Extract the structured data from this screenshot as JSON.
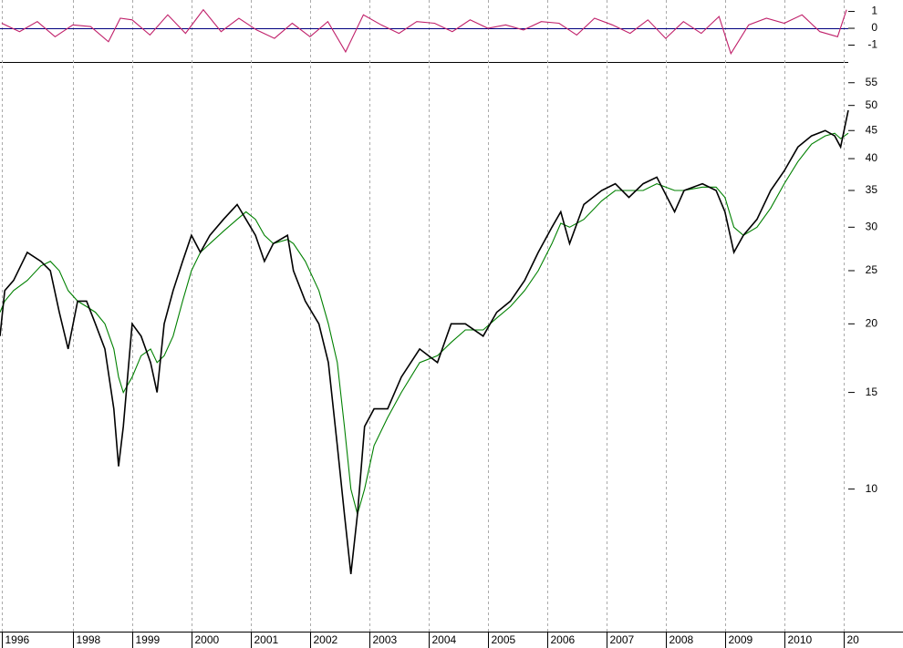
{
  "chart_data": [
    {
      "type": "line",
      "x": [
        1996.77,
        1996.85,
        1997.0,
        1997.23,
        1997.46,
        1997.62,
        1997.77,
        1997.92,
        1998.08,
        1998.23,
        1998.38,
        1998.54,
        1998.69,
        1998.77,
        1998.85,
        1999.0,
        1999.15,
        1999.31,
        1999.42,
        1999.54,
        1999.69,
        1999.85,
        2000.0,
        2000.15,
        2000.31,
        2000.54,
        2000.77,
        2000.92,
        2001.08,
        2001.23,
        2001.38,
        2001.62,
        2001.72,
        2001.92,
        2002.15,
        2002.31,
        2002.46,
        2002.58,
        2002.69,
        2002.8,
        2002.92,
        2003.08,
        2003.31,
        2003.54,
        2003.85,
        2004.15,
        2004.38,
        2004.62,
        2004.92,
        2005.15,
        2005.38,
        2005.62,
        2005.85,
        2006.08,
        2006.23,
        2006.38,
        2006.62,
        2006.92,
        2007.15,
        2007.38,
        2007.62,
        2007.85,
        2008.15,
        2008.31,
        2008.62,
        2008.85,
        2009.0,
        2009.15,
        2009.31,
        2009.54,
        2009.77,
        2010.0,
        2010.23,
        2010.46,
        2010.69,
        2010.85,
        2010.95,
        2011.08
      ],
      "series": [
        {
          "color": "#000000",
          "values": [
            19,
            23,
            24,
            27,
            26,
            25,
            21,
            18,
            22,
            22,
            20,
            18,
            14,
            11,
            13,
            20,
            19,
            17,
            15,
            20,
            23,
            26,
            29,
            27,
            29,
            31,
            33,
            31,
            29,
            26,
            28,
            29,
            25,
            22,
            20,
            17,
            12,
            9,
            7,
            9,
            13,
            14,
            14,
            16,
            18,
            17,
            20,
            20,
            19,
            21,
            22,
            24,
            27,
            30,
            32,
            28,
            33,
            35,
            36,
            34,
            36,
            37,
            32,
            35,
            36,
            35,
            32,
            27,
            29,
            31,
            35,
            38,
            42,
            44,
            45,
            44,
            42,
            49
          ]
        },
        {
          "color": "#008000",
          "values": [
            21,
            22,
            23,
            24,
            25.5,
            26,
            25,
            23,
            22,
            21.5,
            21,
            20,
            18,
            16,
            15,
            16,
            17.5,
            18,
            17,
            17.5,
            19,
            22,
            25,
            27,
            28,
            29.5,
            31,
            32,
            31,
            29,
            28,
            28.5,
            28,
            26,
            23,
            20,
            17,
            13,
            10,
            9,
            10,
            12,
            13.5,
            15,
            17,
            17.5,
            18.5,
            19.5,
            19.5,
            20.5,
            21.5,
            23,
            25,
            28,
            30.5,
            30,
            31,
            33.5,
            35,
            35,
            35,
            36,
            35,
            35,
            35.5,
            35.5,
            34,
            30,
            29,
            30,
            32.5,
            36,
            39.5,
            42.5,
            44,
            44.5,
            43.5,
            44.5
          ]
        }
      ],
      "xlim": [
        1996.77,
        2011.08
      ],
      "xticks": [
        {
          "value": 1996.8,
          "label": "1996"
        },
        1998,
        1999,
        2000,
        2001,
        2002,
        2003,
        2004,
        2005,
        2006,
        2007,
        2008,
        2009,
        2010,
        {
          "value": 2011.0,
          "label": "20"
        }
      ],
      "ylim": [
        5.5,
        60
      ],
      "log_scale": true,
      "yticks": [
        10,
        15,
        20,
        25,
        30,
        35,
        40,
        45,
        50,
        55
      ],
      "grid": "x"
    },
    {
      "type": "line",
      "x": [
        1996.8,
        1997.1,
        1997.4,
        1997.7,
        1998.0,
        1998.3,
        1998.6,
        1998.8,
        1999.0,
        1999.3,
        1999.6,
        1999.9,
        2000.2,
        2000.5,
        2000.8,
        2001.1,
        2001.4,
        2001.7,
        2002.0,
        2002.3,
        2002.6,
        2002.9,
        2003.2,
        2003.5,
        2003.8,
        2004.1,
        2004.4,
        2004.7,
        2005.0,
        2005.3,
        2005.6,
        2005.9,
        2006.2,
        2006.5,
        2006.8,
        2007.1,
        2007.4,
        2007.7,
        2008.0,
        2008.3,
        2008.6,
        2008.9,
        2009.1,
        2009.4,
        2009.7,
        2010.0,
        2010.3,
        2010.6,
        2010.9,
        2011.05
      ],
      "series": [
        {
          "color": "#c0206a",
          "values": [
            0.3,
            -0.2,
            0.4,
            -0.5,
            0.2,
            0.1,
            -0.8,
            0.6,
            0.5,
            -0.4,
            0.8,
            -0.3,
            1.1,
            -0.2,
            0.6,
            -0.1,
            -0.6,
            0.3,
            -0.5,
            0.4,
            -1.4,
            0.8,
            0.2,
            -0.3,
            0.4,
            0.3,
            -0.2,
            0.5,
            0.0,
            0.2,
            -0.1,
            0.4,
            0.3,
            -0.4,
            0.6,
            0.2,
            -0.3,
            0.5,
            -0.6,
            0.4,
            -0.3,
            0.7,
            -1.5,
            0.2,
            0.6,
            0.3,
            0.8,
            -0.2,
            -0.5,
            1.1
          ]
        }
      ],
      "xlim": [
        1996.77,
        2011.08
      ],
      "ylim": [
        -2,
        1.68
      ],
      "yticks": [
        1,
        0,
        -1
      ],
      "grid": false
    }
  ]
}
